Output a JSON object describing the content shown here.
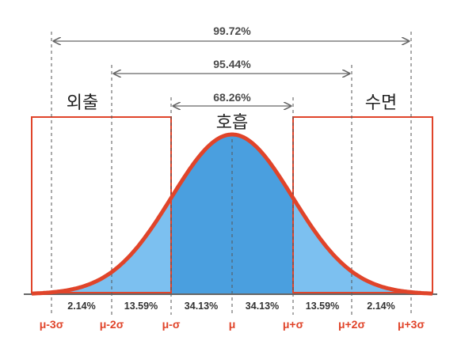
{
  "ranges": {
    "three_sigma": "99.72%",
    "two_sigma": "95.44%",
    "one_sigma": "68.26%"
  },
  "labels": {
    "left_zone": "외출",
    "right_zone": "수면",
    "center_zone": "호흡"
  },
  "region_percentages": [
    "2.14%",
    "13.59%",
    "34.13%",
    "34.13%",
    "13.59%",
    "2.14%"
  ],
  "sigma_ticks": [
    "μ-3σ",
    "μ-2σ",
    "μ-σ",
    "μ",
    "μ+σ",
    "μ+2σ",
    "μ+3σ"
  ],
  "colors": {
    "curve": "#e0442a",
    "fill_inner": "#4a9fdf",
    "fill_outer": "#7cc0f0",
    "box_outline": "#e0442a",
    "tick_text": "#e0442a"
  }
}
